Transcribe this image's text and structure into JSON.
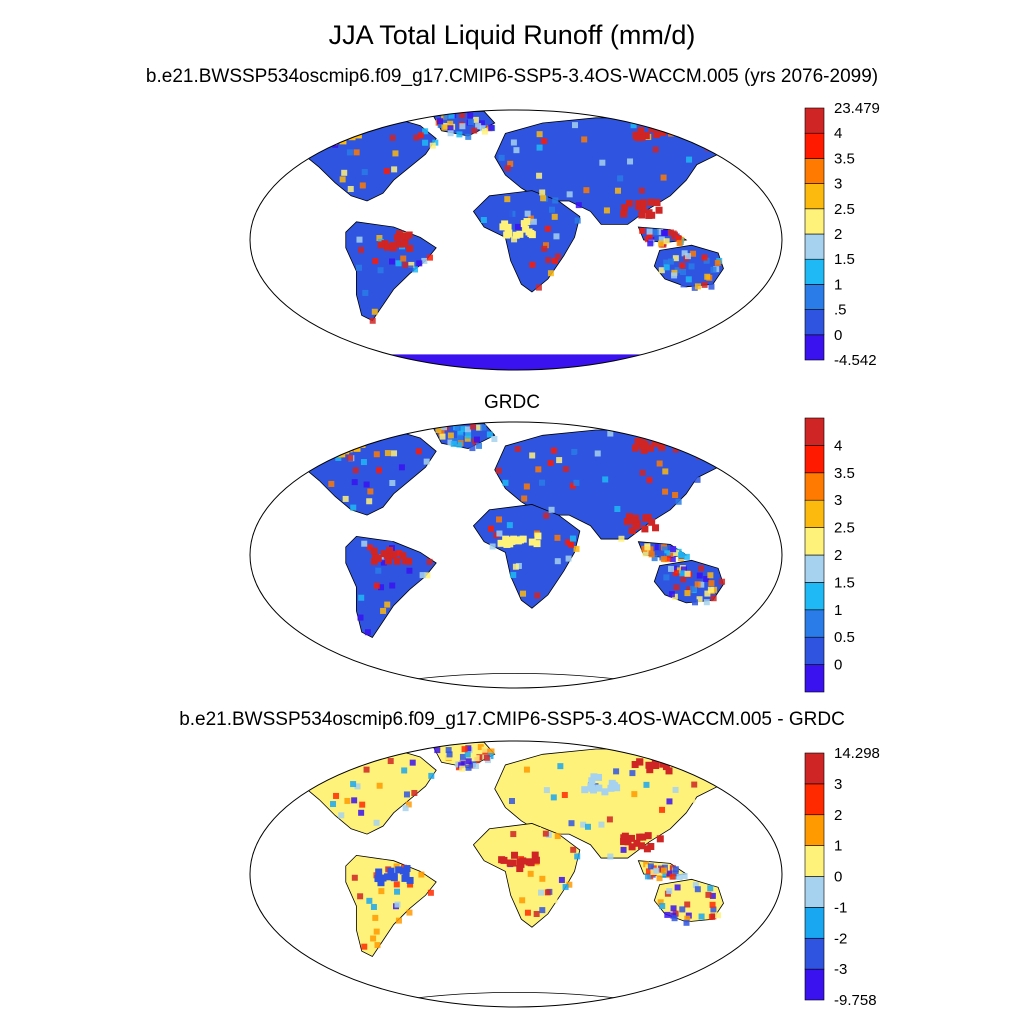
{
  "title": "JJA Total Liquid Runoff (mm/d)",
  "colors": {
    "ocean": "#ffffff",
    "coast": "#000000"
  },
  "panels": [
    {
      "subtitle": "b.e21.BWSSP534oscmip6.f09_g17.CMIP6-SSP5-3.4OS-WACCM.005 (yrs 2076-2099)",
      "colorbar": {
        "colors": [
          "#3a12f0",
          "#2f55e0",
          "#2a7de8",
          "#1fbaf5",
          "#a6d2ef",
          "#fff27a",
          "#fcba0f",
          "#ff7a00",
          "#ff1a00",
          "#d02525"
        ],
        "labels": [
          "-4.542",
          "0",
          ".5",
          "1",
          "1.5",
          "2",
          "2.5",
          "3",
          "3.5",
          "4",
          "23.479"
        ],
        "has_end_labels": true
      },
      "field": {
        "land_base": "#2f55e0",
        "ocean_fill": "#ffffff",
        "antarctica": "#3a12f0",
        "hotspots": [
          {
            "name": "amazon",
            "color": "#d02525"
          },
          {
            "name": "se-asia",
            "color": "#d02525"
          },
          {
            "name": "west-africa",
            "color": "#fff27a"
          },
          {
            "name": "arctic-ne",
            "color": "#d02525"
          },
          {
            "name": "alaska-yukon",
            "color": "#fcba0f"
          }
        ]
      }
    },
    {
      "subtitle": "GRDC",
      "colorbar": {
        "colors": [
          "#3a12f0",
          "#2f55e0",
          "#2a7de8",
          "#1fbaf5",
          "#a6d2ef",
          "#fff27a",
          "#fcba0f",
          "#ff7a00",
          "#ff1a00",
          "#d02525"
        ],
        "labels": [
          "0",
          "0.5",
          "1",
          "1.5",
          "2",
          "2.5",
          "3",
          "3.5",
          "4"
        ],
        "has_end_labels": false
      },
      "field": {
        "land_base": "#2f55e0",
        "ocean_fill": "#ffffff",
        "antarctica": "#ffffff",
        "hotspots": [
          {
            "name": "amazon",
            "color": "#d02525"
          },
          {
            "name": "se-asia",
            "color": "#d02525"
          },
          {
            "name": "west-africa",
            "color": "#fff27a"
          },
          {
            "name": "arctic-ne",
            "color": "#d02525"
          },
          {
            "name": "alaska-yukon",
            "color": "#fcba0f"
          }
        ]
      }
    },
    {
      "subtitle": "b.e21.BWSSP534oscmip6.f09_g17.CMIP6-SSP5-3.4OS-WACCM.005 - GRDC",
      "colorbar": {
        "colors": [
          "#3a12f0",
          "#2f55e0",
          "#1aa7f2",
          "#a6d2ef",
          "#fff27a",
          "#ff9a00",
          "#ff2a00",
          "#d02525"
        ],
        "labels": [
          "-9.758",
          "-3",
          "-2",
          "-1",
          "0",
          "1",
          "2",
          "3",
          "14.298"
        ],
        "has_end_labels": true
      },
      "field": {
        "land_base": "#fff27a",
        "ocean_fill": "#ffffff",
        "antarctica": "#ffffff",
        "hotspots": [
          {
            "name": "amazon",
            "color": "#2f55e0"
          },
          {
            "name": "se-asia",
            "color": "#d02525"
          },
          {
            "name": "west-africa",
            "color": "#d02525"
          },
          {
            "name": "arctic-ne",
            "color": "#d02525"
          },
          {
            "name": "north-russia",
            "color": "#a6d2ef"
          }
        ]
      }
    }
  ]
}
